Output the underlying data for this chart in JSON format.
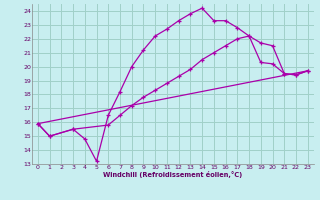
{
  "xlabel": "Windchill (Refroidissement éolien,°C)",
  "bg_color": "#c8eef0",
  "grid_color": "#a0d0c8",
  "line_color": "#aa00aa",
  "xlim": [
    -0.5,
    23.5
  ],
  "ylim": [
    13,
    24.5
  ],
  "yticks": [
    13,
    14,
    15,
    16,
    17,
    18,
    19,
    20,
    21,
    22,
    23,
    24
  ],
  "xticks": [
    0,
    1,
    2,
    3,
    4,
    5,
    6,
    7,
    8,
    9,
    10,
    11,
    12,
    13,
    14,
    15,
    16,
    17,
    18,
    19,
    20,
    21,
    22,
    23
  ],
  "line1_x": [
    0,
    1,
    3,
    4,
    5,
    6,
    7,
    8,
    9,
    10,
    11,
    12,
    13,
    14,
    15,
    16,
    17,
    18,
    19,
    20,
    21,
    22,
    23
  ],
  "line1_y": [
    15.9,
    15.0,
    15.5,
    14.8,
    13.2,
    16.5,
    18.2,
    20.0,
    21.2,
    22.2,
    22.7,
    23.3,
    23.8,
    24.2,
    23.3,
    23.3,
    22.8,
    22.2,
    20.3,
    20.2,
    19.5,
    19.4,
    19.7
  ],
  "line2_x": [
    0,
    1,
    3,
    6,
    7,
    8,
    9,
    10,
    11,
    12,
    13,
    14,
    15,
    16,
    17,
    18,
    19,
    20,
    21,
    22,
    23
  ],
  "line2_y": [
    15.9,
    15.0,
    15.5,
    15.8,
    16.5,
    17.2,
    17.8,
    18.3,
    18.8,
    19.3,
    19.8,
    20.5,
    21.0,
    21.5,
    22.0,
    22.2,
    21.7,
    21.5,
    19.5,
    19.4,
    19.7
  ],
  "line3_x": [
    0,
    23
  ],
  "line3_y": [
    15.9,
    19.7
  ]
}
